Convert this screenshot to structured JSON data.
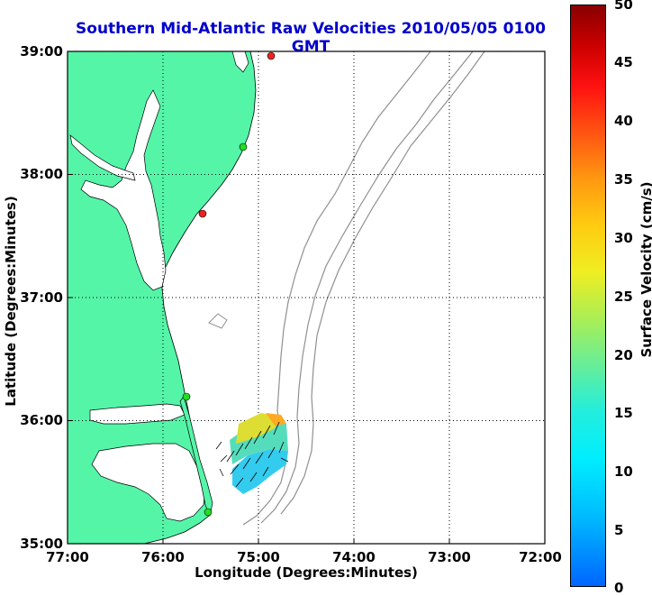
{
  "title": "Southern Mid-Atlantic Raw Velocities 2010/05/05 0100 GMT",
  "axes": {
    "xlabel": "Longitude (Degrees:Minutes)",
    "ylabel": "Latitude (Degrees:Minutes)",
    "xticks": [
      "77:00",
      "76:00",
      "75:00",
      "74:00",
      "73:00",
      "72:00"
    ],
    "yticks": [
      "39:00",
      "38:00",
      "37:00",
      "36:00",
      "35:00"
    ]
  },
  "colorbar": {
    "label": "Surface Velocity (cm/s)",
    "ticks": [
      "50",
      "45",
      "40",
      "35",
      "30",
      "25",
      "20",
      "15",
      "10",
      "5",
      "0"
    ],
    "range": [
      0,
      50
    ]
  },
  "colors": {
    "land": "#55f5a8",
    "coastline": "#000000",
    "bathymetry": "#909090",
    "title": "#0000cc",
    "station_green": "#22dd22",
    "station_red": "#ee2222"
  },
  "map_extent": {
    "lon_west": -77.0,
    "lon_east": -72.0,
    "lat_south": 35.0,
    "lat_north": 39.0
  },
  "stations": [
    {
      "status": "red",
      "lon": -74.85,
      "lat": 38.96
    },
    {
      "status": "green",
      "lon": -75.09,
      "lat": 38.2
    },
    {
      "status": "red",
      "lon": -75.45,
      "lat": 37.67
    },
    {
      "status": "green",
      "lon": -75.67,
      "lat": 36.19
    },
    {
      "status": "green",
      "lon": -75.47,
      "lat": 35.24
    }
  ]
}
